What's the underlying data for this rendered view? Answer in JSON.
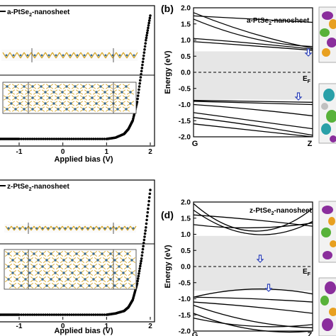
{
  "colors": {
    "curve": "#000000",
    "band": "#000000",
    "gap_shade": "#e6e6e6",
    "arrow": "#2a3fb8",
    "pt_atom": "#3c6e98",
    "se_atom": "#d8a82a",
    "orbital_purple": "#8a2e9c",
    "orbital_green": "#58b23a",
    "orbital_orange": "#e8a020",
    "orbital_teal": "#2aa0a8"
  },
  "panels": {
    "a": {
      "label": "",
      "legend": "a-PtSe",
      "legend_sub": "2",
      "legend_tail": "-nanosheet",
      "xlabel": "Applied bias (V)",
      "xticks": [
        "-1",
        "0",
        "1",
        "2"
      ]
    },
    "b": {
      "label": "(b)",
      "title": "a-PtSe",
      "title_sub": "2",
      "title_tail": "-nanosheet",
      "ylabel": "Energy (eV)",
      "yticks": [
        "2.0",
        "1.5",
        "1.0",
        "0.5",
        "0.0",
        "-0.5",
        "-1.0",
        "-1.5",
        "-2.0"
      ],
      "xticks": [
        "G",
        "Z"
      ],
      "fermi": "E",
      "fermi_sub": "F"
    },
    "c": {
      "label": "",
      "legend": "z-PtSe",
      "legend_sub": "2",
      "legend_tail": "-nanosheet",
      "xlabel": "Applied bias (V)",
      "xticks": [
        "-1",
        "0",
        "1",
        "2"
      ]
    },
    "d": {
      "label": "(d)",
      "title": "z-PtSe",
      "title_sub": "2",
      "title_tail": "-nanosheet",
      "ylabel": "Energy (eV)",
      "yticks": [
        "2.0",
        "1.5",
        "1.0",
        "0.5",
        "0.0",
        "-0.5",
        "-1.0",
        "-1.5",
        "-2.0"
      ],
      "xticks": [
        "G",
        "Z"
      ],
      "fermi": "E",
      "fermi_sub": "F"
    }
  },
  "chart_data": [
    {
      "type": "line",
      "panel": "a",
      "xlabel": "Applied bias (V)",
      "xlim": [
        -1.6,
        2.0
      ],
      "series": [
        {
          "x": [
            -1.6,
            -1.4,
            -1.2,
            -1.0,
            -0.5,
            0.0,
            0.5,
            1.0,
            1.2,
            1.4,
            1.5,
            1.6,
            1.7,
            1.8,
            1.9,
            2.0
          ],
          "y": [
            0.0,
            0.0,
            0.0,
            0.0,
            0.0,
            0.0,
            0.0,
            0.0,
            0.01,
            0.04,
            0.08,
            0.15,
            0.3,
            0.55,
            0.8,
            1.0
          ]
        }
      ]
    },
    {
      "type": "line",
      "panel": "b",
      "ylabel": "Energy (eV)",
      "ylim": [
        -2.0,
        2.0
      ],
      "x_ticks": [
        "G",
        "Z"
      ],
      "gap_shade": [
        -0.85,
        0.65
      ],
      "series": [
        {
          "x": [
            0,
            0.5,
            1
          ],
          "y": [
            1.75,
            1.65,
            1.55
          ]
        },
        {
          "x": [
            0,
            0.5,
            1
          ],
          "y": [
            1.85,
            1.2,
            0.75
          ]
        },
        {
          "x": [
            0,
            0.5,
            1
          ],
          "y": [
            1.65,
            1.05,
            0.8
          ]
        },
        {
          "x": [
            0,
            0.5,
            1
          ],
          "y": [
            1.05,
            0.9,
            0.72
          ]
        },
        {
          "x": [
            0,
            0.5,
            1
          ],
          "y": [
            0.95,
            0.82,
            0.68
          ]
        },
        {
          "x": [
            0,
            0.5,
            1
          ],
          "y": [
            -0.87,
            -0.9,
            -0.93
          ]
        },
        {
          "x": [
            0,
            0.5,
            1
          ],
          "y": [
            -0.9,
            -0.95,
            -1.0
          ]
        },
        {
          "x": [
            0,
            0.5,
            1
          ],
          "y": [
            -1.0,
            -1.15,
            -1.35
          ]
        },
        {
          "x": [
            0,
            0.5,
            1
          ],
          "y": [
            -1.25,
            -1.5,
            -1.75
          ]
        },
        {
          "x": [
            0,
            0.5,
            1
          ],
          "y": [
            -1.6,
            -1.8,
            -2.0
          ]
        },
        {
          "x": [
            0,
            0.5,
            1
          ],
          "y": [
            -1.4,
            -1.65,
            -1.95
          ]
        }
      ]
    },
    {
      "type": "line",
      "panel": "c",
      "xlabel": "Applied bias (V)",
      "xlim": [
        -1.6,
        2.0
      ],
      "series": [
        {
          "x": [
            -1.6,
            -1.4,
            -1.2,
            -1.0,
            -0.5,
            0.0,
            0.5,
            1.0,
            1.2,
            1.4,
            1.5,
            1.6,
            1.7,
            1.8,
            1.9,
            2.0
          ],
          "y": [
            0.0,
            0.0,
            0.0,
            0.0,
            0.0,
            0.0,
            0.0,
            0.0,
            0.01,
            0.03,
            0.06,
            0.12,
            0.25,
            0.45,
            0.7,
            1.0
          ]
        }
      ]
    },
    {
      "type": "line",
      "panel": "d",
      "ylabel": "Energy (eV)",
      "ylim": [
        -2.0,
        2.0
      ],
      "x_ticks": [
        "G",
        "Z"
      ],
      "gap_shade": [
        -0.75,
        0.95
      ],
      "series": [
        {
          "x": [
            0,
            0.5,
            1
          ],
          "y": [
            1.95,
            1.1,
            1.8
          ]
        },
        {
          "x": [
            0,
            0.5,
            1
          ],
          "y": [
            1.75,
            1.0,
            1.4
          ]
        },
        {
          "x": [
            0,
            0.5,
            1
          ],
          "y": [
            1.6,
            1.45,
            1.25
          ]
        },
        {
          "x": [
            0,
            0.5,
            1
          ],
          "y": [
            1.3,
            1.2,
            1.35
          ]
        },
        {
          "x": [
            0,
            0.5,
            1
          ],
          "y": [
            -0.95,
            -0.7,
            -0.85
          ]
        },
        {
          "x": [
            0,
            0.5,
            1
          ],
          "y": [
            -0.95,
            -1.0,
            -1.1
          ]
        },
        {
          "x": [
            0,
            0.5,
            1
          ],
          "y": [
            -1.1,
            -1.25,
            -1.45
          ]
        },
        {
          "x": [
            0,
            0.5,
            1
          ],
          "y": [
            -1.2,
            -1.7,
            -1.9
          ]
        },
        {
          "x": [
            0,
            0.5,
            1
          ],
          "y": [
            -1.45,
            -1.95,
            -2.0
          ]
        },
        {
          "x": [
            0,
            0.5,
            1
          ],
          "y": [
            -1.6,
            -1.85,
            -1.8
          ]
        }
      ]
    }
  ]
}
